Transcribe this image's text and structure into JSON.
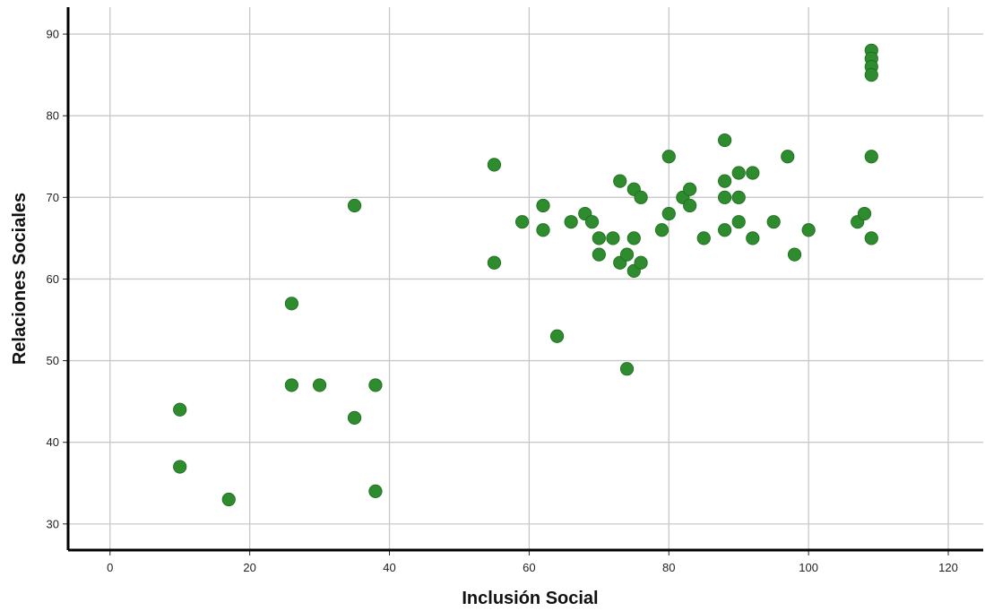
{
  "chart_data": {
    "type": "scatter",
    "xlabel": "Inclusión Social",
    "ylabel": "Relaciones Sociales",
    "xlim": [
      -6,
      125
    ],
    "ylim": [
      26.8,
      93.3
    ],
    "xticks": [
      0,
      20,
      40,
      60,
      80,
      100,
      120
    ],
    "yticks": [
      30,
      40,
      50,
      60,
      70,
      80,
      90
    ],
    "grid": true,
    "marker_color": "#2e8b2e",
    "points": [
      [
        10,
        44
      ],
      [
        10,
        37
      ],
      [
        17,
        33
      ],
      [
        26,
        57
      ],
      [
        26,
        47
      ],
      [
        30,
        47
      ],
      [
        35,
        69
      ],
      [
        35,
        43
      ],
      [
        38,
        47
      ],
      [
        38,
        34
      ],
      [
        55,
        74
      ],
      [
        55,
        62
      ],
      [
        59,
        67
      ],
      [
        62,
        69
      ],
      [
        62,
        66
      ],
      [
        64,
        53
      ],
      [
        66,
        67
      ],
      [
        68,
        68
      ],
      [
        69,
        67
      ],
      [
        70,
        65
      ],
      [
        70,
        63
      ],
      [
        72,
        65
      ],
      [
        73,
        72
      ],
      [
        73,
        62
      ],
      [
        74,
        63
      ],
      [
        74,
        49
      ],
      [
        75,
        71
      ],
      [
        75,
        65
      ],
      [
        75,
        61
      ],
      [
        76,
        70
      ],
      [
        76,
        62
      ],
      [
        79,
        66
      ],
      [
        80,
        75
      ],
      [
        80,
        68
      ],
      [
        82,
        70
      ],
      [
        83,
        71
      ],
      [
        83,
        69
      ],
      [
        85,
        65
      ],
      [
        88,
        77
      ],
      [
        88,
        72
      ],
      [
        88,
        70
      ],
      [
        88,
        66
      ],
      [
        90,
        73
      ],
      [
        90,
        70
      ],
      [
        90,
        67
      ],
      [
        92,
        73
      ],
      [
        92,
        65
      ],
      [
        95,
        67
      ],
      [
        97,
        75
      ],
      [
        98,
        63
      ],
      [
        100,
        66
      ],
      [
        107,
        67
      ],
      [
        108,
        68
      ],
      [
        109,
        88
      ],
      [
        109,
        87
      ],
      [
        109,
        86
      ],
      [
        109,
        85
      ],
      [
        109,
        75
      ],
      [
        109,
        65
      ]
    ]
  }
}
